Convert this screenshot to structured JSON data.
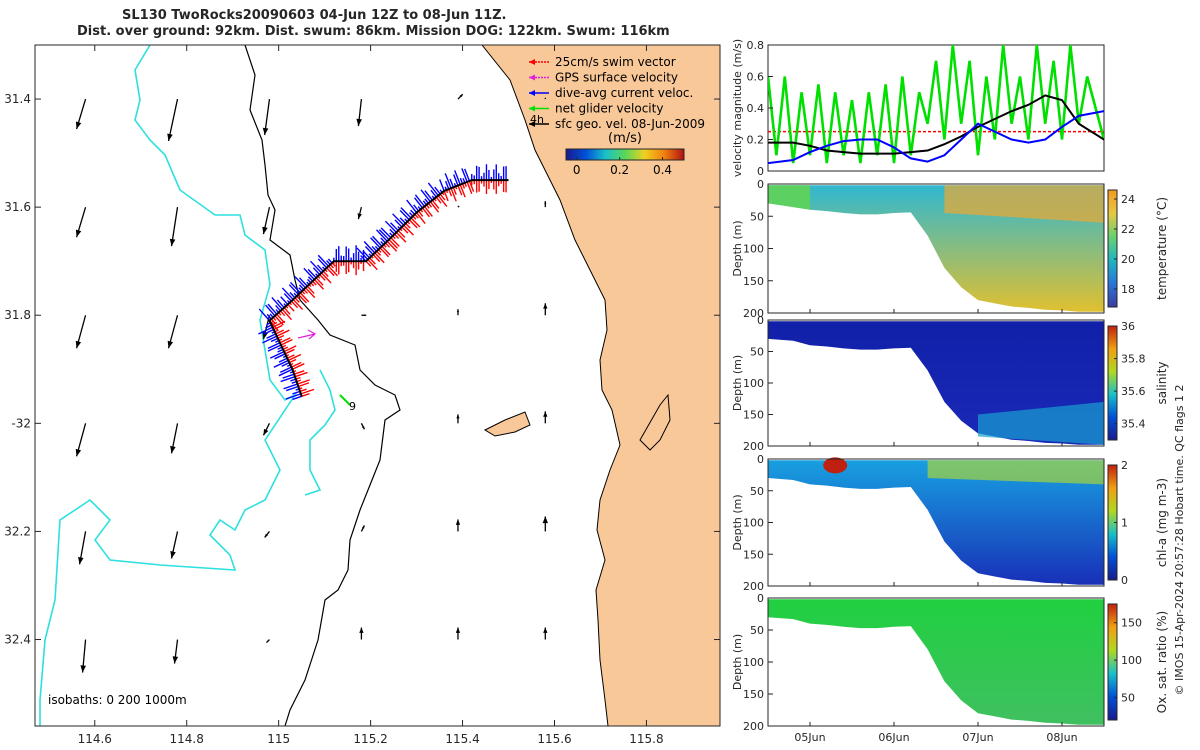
{
  "title_line1": "SL130 TwoRocks20090603 04-Jun 12Z to 08-Jun 11Z.",
  "title_line2": "Dist. over ground: 92km. Dist. swum: 86km. Mission DOG: 122km. Swum: 116km",
  "copyright": "© IMOS 15-Apr-2024 20:57:28 Hobart time. QC flags 1  2",
  "colors": {
    "ocean": "#ffffff",
    "land": "#f9c898",
    "isobath_shallow": "#2ee0e0",
    "swim": "#ff0000",
    "gps": "#e020e0",
    "current": "#0000ff",
    "net": "#00e000",
    "geo": "#000000"
  },
  "chart_data": [
    {
      "type": "map",
      "x_ticks": [
        114.6,
        114.8,
        115,
        115.2,
        115.4,
        115.6,
        115.8
      ],
      "x_tick_labels": [
        "114.6",
        "114.8",
        "115",
        "115.2",
        "115.4",
        "115.6",
        "115.8"
      ],
      "y_ticks": [
        -31.4,
        -31.6,
        -31.8,
        -32,
        -32.2,
        -32.4
      ],
      "y_tick_labels": [
        "31.4",
        "31.6",
        "31.8",
        "-32",
        "32.2",
        "32.4"
      ],
      "xlim": [
        114.47,
        115.96
      ],
      "ylim": [
        -32.56,
        -31.3
      ],
      "legend": [
        {
          "label": "25cm/s swim vector",
          "color": "#ff0000"
        },
        {
          "label": "GPS surface velocity",
          "color": "#e020e0"
        },
        {
          "label": "dive-avg current veloc.",
          "color": "#0000ff"
        },
        {
          "label": "net glider velocity",
          "color": "#00e000"
        },
        {
          "label": "sfc geo. vel. 08-Jun-2009",
          "color": "#000000"
        }
      ],
      "colorbar": {
        "label": "(m/s)",
        "ticks": [
          0,
          0.2,
          0.4
        ],
        "tick_labels": [
          "0",
          "0.2",
          "0.4"
        ],
        "range": [
          -0.05,
          0.5
        ]
      },
      "isobaths_label": "isobaths: 0   200  1000m",
      "annotation_4h": "4h",
      "annotation_9": "9",
      "track": [
        [
          115.05,
          -31.95
        ],
        [
          115.03,
          -31.9
        ],
        [
          114.98,
          -31.81
        ],
        [
          115.02,
          -31.78
        ],
        [
          115.07,
          -31.74
        ],
        [
          115.12,
          -31.7
        ],
        [
          115.19,
          -31.7
        ],
        [
          115.24,
          -31.66
        ],
        [
          115.3,
          -31.61
        ],
        [
          115.36,
          -31.57
        ],
        [
          115.42,
          -31.55
        ],
        [
          115.5,
          -31.55
        ]
      ],
      "arrows": [
        {
          "lon": 114.58,
          "lat": -31.4,
          "u": -0.15,
          "v": -0.5
        },
        {
          "lon": 114.78,
          "lat": -31.4,
          "u": -0.15,
          "v": -0.7
        },
        {
          "lon": 114.98,
          "lat": -31.4,
          "u": -0.08,
          "v": -0.6
        },
        {
          "lon": 115.18,
          "lat": -31.4,
          "u": -0.05,
          "v": -0.45
        },
        {
          "lon": 115.39,
          "lat": -31.4,
          "u": 0.08,
          "v": 0.08
        },
        {
          "lon": 115.58,
          "lat": -31.4,
          "u": 0.0,
          "v": 0.02
        },
        {
          "lon": 114.58,
          "lat": -31.6,
          "u": -0.15,
          "v": -0.5
        },
        {
          "lon": 114.78,
          "lat": -31.6,
          "u": -0.1,
          "v": -0.65
        },
        {
          "lon": 114.98,
          "lat": -31.6,
          "u": -0.1,
          "v": -0.45
        },
        {
          "lon": 115.18,
          "lat": -31.6,
          "u": -0.05,
          "v": -0.2
        },
        {
          "lon": 115.39,
          "lat": -31.6,
          "u": 0.02,
          "v": 0.02
        },
        {
          "lon": 115.58,
          "lat": -31.6,
          "u": 0.0,
          "v": 0.1
        },
        {
          "lon": 114.58,
          "lat": -31.8,
          "u": -0.15,
          "v": -0.55
        },
        {
          "lon": 114.78,
          "lat": -31.8,
          "u": -0.15,
          "v": -0.55
        },
        {
          "lon": 114.98,
          "lat": -31.8,
          "u": -0.1,
          "v": -0.4
        },
        {
          "lon": 115.18,
          "lat": -31.8,
          "u": 0.08,
          "v": 0.0
        },
        {
          "lon": 115.39,
          "lat": -31.8,
          "u": 0.0,
          "v": 0.1
        },
        {
          "lon": 115.58,
          "lat": -31.8,
          "u": 0.0,
          "v": 0.2
        },
        {
          "lon": 114.58,
          "lat": -32.0,
          "u": -0.15,
          "v": -0.55
        },
        {
          "lon": 114.78,
          "lat": -32.0,
          "u": -0.1,
          "v": -0.5
        },
        {
          "lon": 114.98,
          "lat": -32.0,
          "u": -0.1,
          "v": -0.2
        },
        {
          "lon": 115.18,
          "lat": -32.0,
          "u": 0.05,
          "v": -0.1
        },
        {
          "lon": 115.39,
          "lat": -32.0,
          "u": 0.0,
          "v": 0.15
        },
        {
          "lon": 115.58,
          "lat": -32.0,
          "u": 0.0,
          "v": 0.2
        },
        {
          "lon": 114.58,
          "lat": -32.2,
          "u": -0.1,
          "v": -0.55
        },
        {
          "lon": 114.78,
          "lat": -32.2,
          "u": -0.1,
          "v": -0.45
        },
        {
          "lon": 114.98,
          "lat": -32.2,
          "u": -0.08,
          "v": -0.1
        },
        {
          "lon": 115.18,
          "lat": -32.2,
          "u": 0.05,
          "v": 0.1
        },
        {
          "lon": 115.39,
          "lat": -32.2,
          "u": 0.0,
          "v": 0.2
        },
        {
          "lon": 115.58,
          "lat": -32.2,
          "u": 0.0,
          "v": 0.25
        },
        {
          "lon": 114.58,
          "lat": -32.4,
          "u": -0.05,
          "v": -0.55
        },
        {
          "lon": 114.78,
          "lat": -32.4,
          "u": -0.05,
          "v": -0.4
        },
        {
          "lon": 114.98,
          "lat": -32.4,
          "u": -0.05,
          "v": -0.05
        },
        {
          "lon": 115.18,
          "lat": -32.4,
          "u": 0.0,
          "v": 0.2
        },
        {
          "lon": 115.39,
          "lat": -32.4,
          "u": 0.0,
          "v": 0.2
        },
        {
          "lon": 115.58,
          "lat": -32.4,
          "u": 0.0,
          "v": 0.2
        }
      ]
    },
    {
      "type": "line",
      "ylabel": "velocity magnitude (m/s)",
      "ylim": [
        0,
        0.8
      ],
      "y_ticks": [
        0,
        0.2,
        0.4,
        0.6,
        0.8
      ],
      "y_tick_labels": [
        "0",
        "0.2",
        "0.4",
        "0.6",
        "0.8"
      ],
      "xlim": [
        4.5,
        8.5
      ],
      "swim_level": 0.25,
      "series": [
        {
          "color": "#0000ff",
          "x": [
            4.5,
            4.8,
            5.0,
            5.2,
            5.4,
            5.6,
            5.8,
            6.0,
            6.2,
            6.4,
            6.6,
            6.8,
            7.0,
            7.2,
            7.4,
            7.6,
            7.8,
            8.0,
            8.2,
            8.5
          ],
          "values": [
            0.05,
            0.07,
            0.12,
            0.16,
            0.19,
            0.2,
            0.2,
            0.15,
            0.08,
            0.06,
            0.1,
            0.2,
            0.3,
            0.25,
            0.2,
            0.18,
            0.2,
            0.28,
            0.35,
            0.38
          ]
        },
        {
          "color": "#000000",
          "x": [
            4.5,
            4.8,
            5.0,
            5.2,
            5.4,
            5.6,
            5.8,
            6.0,
            6.2,
            6.4,
            6.6,
            6.8,
            7.0,
            7.2,
            7.4,
            7.6,
            7.8,
            8.0,
            8.2,
            8.5
          ],
          "values": [
            0.18,
            0.18,
            0.16,
            0.13,
            0.12,
            0.11,
            0.11,
            0.11,
            0.12,
            0.13,
            0.17,
            0.22,
            0.28,
            0.33,
            0.38,
            0.42,
            0.48,
            0.45,
            0.3,
            0.2
          ]
        },
        {
          "color": "#00e000",
          "x": [
            4.5,
            4.6,
            4.7,
            4.8,
            4.9,
            5.0,
            5.1,
            5.2,
            5.3,
            5.4,
            5.5,
            5.6,
            5.7,
            5.8,
            5.9,
            6.0,
            6.1,
            6.2,
            6.3,
            6.4,
            6.5,
            6.6,
            6.7,
            6.8,
            6.9,
            7.0,
            7.1,
            7.2,
            7.3,
            7.4,
            7.5,
            7.6,
            7.7,
            7.8,
            7.9,
            8.0,
            8.1,
            8.2,
            8.3,
            8.4,
            8.5
          ],
          "values": [
            0.6,
            0.1,
            0.6,
            0.05,
            0.5,
            0.1,
            0.55,
            0.05,
            0.5,
            0.1,
            0.45,
            0.05,
            0.5,
            0.1,
            0.55,
            0.05,
            0.6,
            0.1,
            0.5,
            0.3,
            0.7,
            0.2,
            0.8,
            0.3,
            0.7,
            0.1,
            0.6,
            0.2,
            0.8,
            0.3,
            0.6,
            0.2,
            0.8,
            0.3,
            0.7,
            0.2,
            0.8,
            0.3,
            0.6,
            0.4,
            0.2
          ]
        }
      ]
    },
    {
      "type": "heatmap",
      "ylabel": "Depth (m)",
      "colorbar_label": "temperature (°C)",
      "ylim": [
        0,
        200
      ],
      "y_ticks": [
        0,
        50,
        100,
        150,
        200
      ],
      "y_tick_labels": [
        "0",
        "50",
        "100",
        "150",
        "200"
      ],
      "cticks_labels": [
        "18",
        "20",
        "22",
        "24"
      ],
      "cticks": [
        18,
        20,
        22,
        24
      ],
      "crange": [
        16.8,
        24.6
      ],
      "colormap": "parula",
      "stops": [
        "#3c3ca0",
        "#2876d8",
        "#1fb6c0",
        "#69d070",
        "#e6c840",
        "#f49a20"
      ]
    },
    {
      "type": "heatmap",
      "ylabel": "Depth (m)",
      "colorbar_label": "salinity",
      "ylim": [
        0,
        200
      ],
      "y_ticks": [
        0,
        50,
        100,
        150,
        200
      ],
      "y_tick_labels": [
        "0",
        "50",
        "100",
        "150",
        "200"
      ],
      "cticks_labels": [
        "35.4",
        "35.6",
        "35.8",
        "36"
      ],
      "cticks": [
        35.4,
        35.6,
        35.8,
        36
      ],
      "crange": [
        35.3,
        36.0
      ],
      "colormap": "jet",
      "stops": [
        "#1a1a8c",
        "#0050d8",
        "#18c0c8",
        "#b0d820",
        "#f0a010",
        "#c02010"
      ]
    },
    {
      "type": "heatmap",
      "ylabel": "Depth (m)",
      "colorbar_label": "chl-a (mg m-3)",
      "ylim": [
        0,
        200
      ],
      "y_ticks": [
        0,
        50,
        100,
        150,
        200
      ],
      "y_tick_labels": [
        "0",
        "50",
        "100",
        "150",
        "200"
      ],
      "cticks_labels": [
        "0",
        "1",
        "2"
      ],
      "cticks": [
        0,
        1,
        2
      ],
      "crange": [
        0,
        2
      ],
      "colormap": "jet",
      "stops": [
        "#1a1a8c",
        "#0050d8",
        "#18c0c8",
        "#b0d820",
        "#f0a010",
        "#c02010"
      ]
    },
    {
      "type": "heatmap",
      "ylabel": "Depth (m)",
      "colorbar_label": "Ox. sat. ratio (%)",
      "ylim": [
        0,
        200
      ],
      "y_ticks": [
        0,
        50,
        100,
        150,
        200
      ],
      "y_tick_labels": [
        "0",
        "50",
        "100",
        "150",
        "200"
      ],
      "cticks_labels": [
        "50",
        "100",
        "150"
      ],
      "cticks": [
        50,
        100,
        150
      ],
      "crange": [
        20,
        175
      ],
      "colormap": "jet",
      "stops": [
        "#1a1a8c",
        "#0050d8",
        "#18c0c8",
        "#b0d820",
        "#f0a010",
        "#c02010"
      ],
      "x_ticks": [
        5,
        6,
        7,
        8
      ],
      "x_tick_labels": [
        "05Jun",
        "06Jun",
        "07Jun",
        "08Jun"
      ]
    }
  ]
}
